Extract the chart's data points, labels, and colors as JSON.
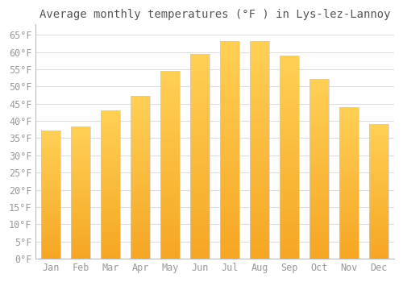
{
  "title": "Average monthly temperatures (°F ) in Lys-lez-Lannoy",
  "months": [
    "Jan",
    "Feb",
    "Mar",
    "Apr",
    "May",
    "Jun",
    "Jul",
    "Aug",
    "Sep",
    "Oct",
    "Nov",
    "Dec"
  ],
  "values": [
    37.2,
    38.3,
    43.0,
    47.3,
    54.5,
    59.4,
    63.1,
    63.1,
    59.0,
    52.2,
    44.1,
    39.0
  ],
  "bar_color_bottom": "#F5A623",
  "bar_color_top": "#FFD966",
  "background_color": "#FFFFFF",
  "grid_color": "#DDDDDD",
  "ylim": [
    0,
    68
  ],
  "yticks": [
    0,
    5,
    10,
    15,
    20,
    25,
    30,
    35,
    40,
    45,
    50,
    55,
    60,
    65
  ],
  "title_fontsize": 10,
  "tick_fontsize": 8.5,
  "font_family": "monospace",
  "tick_color": "#999999",
  "title_color": "#555555"
}
